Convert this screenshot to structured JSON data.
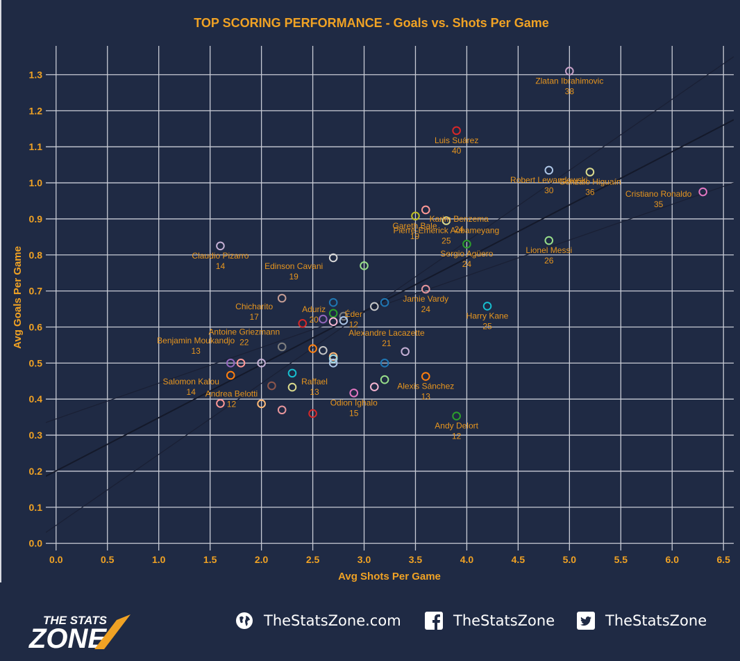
{
  "chart_data": {
    "type": "scatter",
    "title": "TOP SCORING PERFORMANCE - Goals vs. Shots Per Game",
    "xlabel": "Avg Shots Per Game",
    "ylabel": "Avg Goals Per Game",
    "xlim": [
      -0.1,
      6.6
    ],
    "ylim": [
      -0.02,
      1.38
    ],
    "xticks": [
      "0.0",
      "0.5",
      "1.0",
      "1.5",
      "2.0",
      "2.5",
      "3.0",
      "3.5",
      "4.0",
      "4.5",
      "5.0",
      "5.5",
      "6.0",
      "6.5"
    ],
    "yticks": [
      "0.0",
      "0.1",
      "0.2",
      "0.3",
      "0.4",
      "0.5",
      "0.6",
      "0.7",
      "0.8",
      "0.9",
      "1.0",
      "1.1",
      "1.2",
      "1.3"
    ],
    "grid": true,
    "regression_lines": [
      {
        "name": "fit",
        "x": [
          -0.1,
          6.6
        ],
        "y": [
          0.186,
          1.175
        ]
      },
      {
        "name": "upper",
        "x": [
          -0.1,
          6.6
        ],
        "y": [
          0.03,
          1.35
        ]
      },
      {
        "name": "lower",
        "x": [
          -0.1,
          6.6
        ],
        "y": [
          0.335,
          1.0
        ]
      }
    ],
    "points": [
      {
        "x": 5.0,
        "y": 1.31,
        "name": "Zlatan Ibrahimovic",
        "value": "38",
        "color": "#c8a2c8"
      },
      {
        "x": 3.9,
        "y": 1.145,
        "name": "Luis Suárez",
        "value": "40",
        "color": "#d62728"
      },
      {
        "x": 4.8,
        "y": 1.035,
        "name": "Robert Lewandowski",
        "value": "30",
        "color": "#aec7e8"
      },
      {
        "x": 5.2,
        "y": 1.03,
        "name": "Gonzalo Higuaín",
        "value": "36",
        "color": "#dbdb8d"
      },
      {
        "x": 6.3,
        "y": 0.975,
        "name": "Cristiano Ronaldo",
        "value": "35",
        "color": "#e377c2"
      },
      {
        "x": 3.6,
        "y": 0.925,
        "name": "Karim Benzema",
        "value": "24",
        "color": "#ff9896"
      },
      {
        "x": 3.8,
        "y": 0.895,
        "name": "Pierre-Emerick Aubameyang",
        "value": "25",
        "color": "#dbdb8d"
      },
      {
        "x": 3.5,
        "y": 0.908,
        "name": "Gareth Bale",
        "value": "19",
        "color": "#bcbd22"
      },
      {
        "x": 4.8,
        "y": 0.84,
        "name": "Lionel Messi",
        "value": "26",
        "color": "#98df8a"
      },
      {
        "x": 4.0,
        "y": 0.83,
        "name": "Sergio Agüero",
        "value": "24",
        "color": "#2ca02c"
      },
      {
        "x": 1.6,
        "y": 0.825,
        "name": "Claudio Pizarro",
        "value": "14",
        "color": "#c5b0d5"
      },
      {
        "x": 2.7,
        "y": 0.792,
        "name": "Edinson Cavani",
        "value": "19",
        "color": "#d9d9d9"
      },
      {
        "x": 3.0,
        "y": 0.77,
        "name": "",
        "value": "",
        "color": "#98df8a"
      },
      {
        "x": 3.6,
        "y": 0.705,
        "name": "Jamie Vardy",
        "value": "24",
        "color": "#e7969c"
      },
      {
        "x": 2.2,
        "y": 0.68,
        "name": "Chicharito",
        "value": "17",
        "color": "#c49c94"
      },
      {
        "x": 2.7,
        "y": 0.668,
        "name": "Aduriz",
        "value": "20",
        "color": "#1f77b4"
      },
      {
        "x": 3.2,
        "y": 0.668,
        "name": "",
        "value": "",
        "color": "#1f77b4"
      },
      {
        "x": 3.1,
        "y": 0.657,
        "name": "Éder",
        "value": "12",
        "color": "#c7c7c7"
      },
      {
        "x": 4.2,
        "y": 0.658,
        "name": "Harry Kane",
        "value": "25",
        "color": "#17becf"
      },
      {
        "x": 2.7,
        "y": 0.638,
        "name": "",
        "value": "",
        "color": "#2ca02c"
      },
      {
        "x": 2.8,
        "y": 0.63,
        "name": "",
        "value": "",
        "color": "#7f7f7f"
      },
      {
        "x": 2.6,
        "y": 0.622,
        "name": "",
        "value": "",
        "color": "#9467bd"
      },
      {
        "x": 2.7,
        "y": 0.615,
        "name": "",
        "value": "",
        "color": "#f7b6d2"
      },
      {
        "x": 2.8,
        "y": 0.618,
        "name": "Alexandre Lacazette",
        "value": "21",
        "color": "#aec7e8"
      },
      {
        "x": 2.4,
        "y": 0.61,
        "name": "Antoine Griezmann",
        "value": "22",
        "color": "#d62728"
      },
      {
        "x": 2.2,
        "y": 0.545,
        "name": "Benjamin Moukandjo",
        "value": "13",
        "color": "#7f7f7f"
      },
      {
        "x": 2.5,
        "y": 0.54,
        "name": "",
        "value": "",
        "color": "#ff7f0e"
      },
      {
        "x": 2.6,
        "y": 0.535,
        "name": "",
        "value": "",
        "color": "#c7c7c7"
      },
      {
        "x": 3.4,
        "y": 0.532,
        "name": "",
        "value": "",
        "color": "#c5b0d5"
      },
      {
        "x": 2.7,
        "y": 0.518,
        "name": "",
        "value": "",
        "color": "#ffbb78"
      },
      {
        "x": 2.7,
        "y": 0.512,
        "name": "",
        "value": "",
        "color": "#9edae5"
      },
      {
        "x": 1.7,
        "y": 0.5,
        "name": "",
        "value": "",
        "color": "#9467bd"
      },
      {
        "x": 1.8,
        "y": 0.5,
        "name": "",
        "value": "",
        "color": "#ff9896"
      },
      {
        "x": 2.0,
        "y": 0.5,
        "name": "",
        "value": "",
        "color": "#c5b0d5"
      },
      {
        "x": 2.7,
        "y": 0.5,
        "name": "",
        "value": "",
        "color": "#aec7e8"
      },
      {
        "x": 3.2,
        "y": 0.5,
        "name": "",
        "value": "",
        "color": "#1f77b4"
      },
      {
        "x": 1.7,
        "y": 0.466,
        "name": "Salomon Kalou",
        "value": "14",
        "color": "#ff7f0e"
      },
      {
        "x": 2.3,
        "y": 0.472,
        "name": "",
        "value": "",
        "color": "#17becf"
      },
      {
        "x": 3.6,
        "y": 0.463,
        "name": "Alexis Sánchez",
        "value": "13",
        "color": "#ff7f0e"
      },
      {
        "x": 3.2,
        "y": 0.454,
        "name": "",
        "value": "",
        "color": "#98df8a"
      },
      {
        "x": 2.1,
        "y": 0.437,
        "name": "",
        "value": "",
        "color": "#8c564b"
      },
      {
        "x": 2.3,
        "y": 0.433,
        "name": "Raffael",
        "value": "13",
        "color": "#dbdb8d"
      },
      {
        "x": 3.1,
        "y": 0.434,
        "name": "",
        "value": "",
        "color": "#f7b6d2"
      },
      {
        "x": 2.9,
        "y": 0.417,
        "name": "Odion Ighalo",
        "value": "15",
        "color": "#e377c2"
      },
      {
        "x": 1.6,
        "y": 0.388,
        "name": "Andrea Belotti",
        "value": "12",
        "color": "#ff9896"
      },
      {
        "x": 2.0,
        "y": 0.387,
        "name": "",
        "value": "",
        "color": "#ffbb78"
      },
      {
        "x": 2.2,
        "y": 0.37,
        "name": "",
        "value": "",
        "color": "#e7969c"
      },
      {
        "x": 2.5,
        "y": 0.36,
        "name": "",
        "value": "",
        "color": "#d62728"
      },
      {
        "x": 3.9,
        "y": 0.353,
        "name": "Andy Delort",
        "value": "12",
        "color": "#2ca02c"
      }
    ]
  },
  "footer": {
    "brand_top": "THE STATS",
    "brand_bottom": "ZONE",
    "website": "TheStatsZone.com",
    "facebook": "TheStatsZone",
    "twitter": "TheStatsZone"
  },
  "colors": {
    "background": "#1f2a44",
    "accent": "#f0a224"
  }
}
